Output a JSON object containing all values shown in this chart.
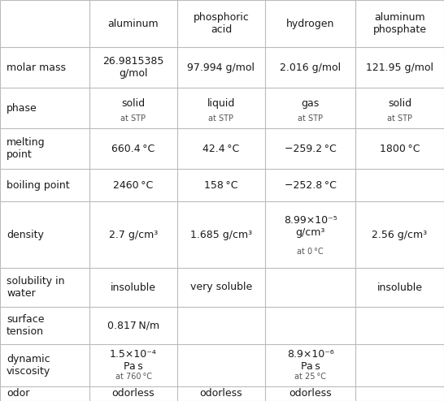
{
  "col_headers": [
    "",
    "aluminum",
    "phosphoric\nacid",
    "hydrogen",
    "aluminum\nphosphate"
  ],
  "rows": [
    {
      "label": "molar mass",
      "cells": [
        {
          "main": "26.9815385\ng/mol",
          "sub": ""
        },
        {
          "main": "97.994 g/mol",
          "sub": ""
        },
        {
          "main": "2.016 g/mol",
          "sub": ""
        },
        {
          "main": "121.95 g/mol",
          "sub": ""
        }
      ]
    },
    {
      "label": "phase",
      "cells": [
        {
          "main": "solid",
          "sub": "at STP"
        },
        {
          "main": "liquid",
          "sub": "at STP"
        },
        {
          "main": "gas",
          "sub": "at STP"
        },
        {
          "main": "solid",
          "sub": "at STP"
        }
      ]
    },
    {
      "label": "melting\npoint",
      "cells": [
        {
          "main": "660.4 °C",
          "sub": ""
        },
        {
          "main": "42.4 °C",
          "sub": ""
        },
        {
          "main": "−259.2 °C",
          "sub": ""
        },
        {
          "main": "1800 °C",
          "sub": ""
        }
      ]
    },
    {
      "label": "boiling point",
      "cells": [
        {
          "main": "2460 °C",
          "sub": ""
        },
        {
          "main": "158 °C",
          "sub": ""
        },
        {
          "main": "−252.8 °C",
          "sub": ""
        },
        {
          "main": "",
          "sub": ""
        }
      ]
    },
    {
      "label": "density",
      "cells": [
        {
          "main": "2.7 g/cm³",
          "sub": ""
        },
        {
          "main": "1.685 g/cm³",
          "sub": ""
        },
        {
          "main": "8.99×10⁻⁵\ng/cm³",
          "sub": "at 0 °C"
        },
        {
          "main": "2.56 g/cm³",
          "sub": ""
        }
      ]
    },
    {
      "label": "solubility in\nwater",
      "cells": [
        {
          "main": "insoluble",
          "sub": ""
        },
        {
          "main": "very soluble",
          "sub": ""
        },
        {
          "main": "",
          "sub": ""
        },
        {
          "main": "insoluble",
          "sub": ""
        }
      ]
    },
    {
      "label": "surface\ntension",
      "cells": [
        {
          "main": "0.817 N/m",
          "sub": ""
        },
        {
          "main": "",
          "sub": ""
        },
        {
          "main": "",
          "sub": ""
        },
        {
          "main": "",
          "sub": ""
        }
      ]
    },
    {
      "label": "dynamic\nviscosity",
      "cells": [
        {
          "main": "1.5×10⁻⁴\nPa s",
          "sub": "at 760 °C"
        },
        {
          "main": "",
          "sub": ""
        },
        {
          "main": "8.9×10⁻⁶\nPa s",
          "sub": "at 25 °C"
        },
        {
          "main": "",
          "sub": ""
        }
      ]
    },
    {
      "label": "odor",
      "cells": [
        {
          "main": "odorless",
          "sub": ""
        },
        {
          "main": "odorless",
          "sub": ""
        },
        {
          "main": "odorless",
          "sub": ""
        },
        {
          "main": "",
          "sub": ""
        }
      ]
    }
  ],
  "bg_color": "#ffffff",
  "line_color": "#bbbbbb",
  "text_color": "#1a1a1a",
  "sub_color": "#555555",
  "main_fontsize": 9.0,
  "sub_fontsize": 7.0,
  "label_fontsize": 9.0,
  "header_fontsize": 9.0
}
